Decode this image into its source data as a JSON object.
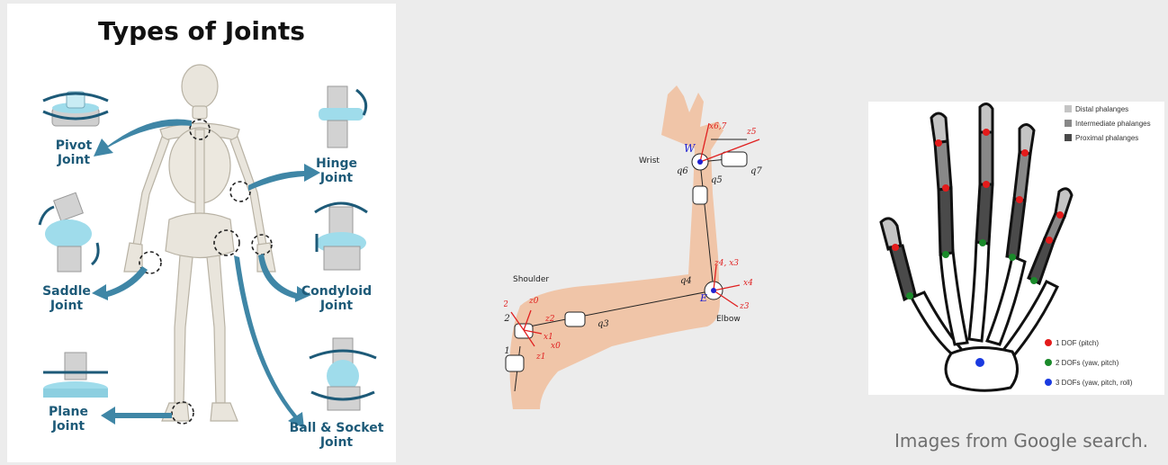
{
  "joints_figure": {
    "title": "Types of Joints",
    "labels": {
      "pivot": [
        "Pivot",
        "Joint"
      ],
      "hinge": [
        "Hinge",
        "Joint"
      ],
      "saddle": [
        "Saddle",
        "Joint"
      ],
      "condyloid": [
        "Condyloid",
        "Joint"
      ],
      "plane": [
        "Plane",
        "Joint"
      ],
      "ball_socket": [
        "Ball & Socket",
        "Joint"
      ]
    }
  },
  "arm_figure": {
    "regions": {
      "wrist": "Wrist",
      "shoulder": "Shoulder",
      "elbow": "Elbow"
    },
    "points": {
      "wrist_point": "W",
      "elbow_point": "E"
    },
    "joint_vars": [
      "q1",
      "q2",
      "q3",
      "q4",
      "q5",
      "q6",
      "q7"
    ],
    "axes": {
      "x67": "x6,7",
      "z5": "z5",
      "z43": "z4, x3",
      "x4": "x4",
      "z3": "z3",
      "x2": "x2",
      "z0": "z0",
      "z2": "z2",
      "x1": "x1",
      "x0": "x0",
      "z1": "z1"
    }
  },
  "hand_figure": {
    "legend_top": [
      "Distal phalanges",
      "Intermediate phalanges",
      "Proximal phalanges"
    ],
    "legend_bottom": [
      "1 DOF (pitch)",
      "2 DOFs (yaw, pitch)",
      "3 DOFs (yaw, pitch, roll)"
    ]
  },
  "caption": "Images from Google search.",
  "colors": {
    "background": "#ececec",
    "joint_teal": "#1d5a78",
    "arm_skin": "#f0c5a8",
    "axis_red": "#e02020",
    "point_blue": "#2020d0",
    "dof1": "#e31b1b",
    "dof2": "#1a8a2a",
    "dof3": "#1a3ae0"
  }
}
